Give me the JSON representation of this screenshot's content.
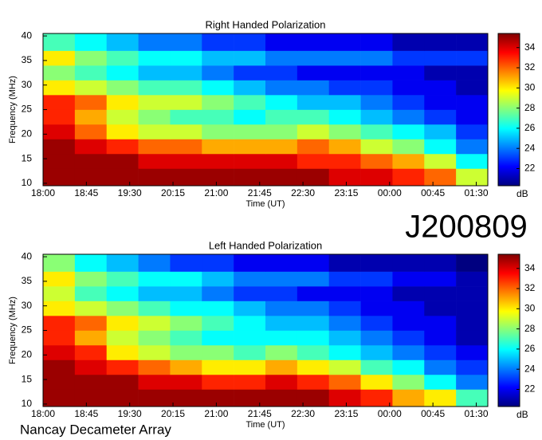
{
  "chart_data": [
    {
      "type": "heatmap",
      "title": "Right Handed Polarization",
      "x_label": "Time (UT)",
      "y_label": "Frequency (MHz)",
      "xlim": [
        18,
        25.7
      ],
      "xticks": [
        {
          "value": 18,
          "label": "18:00"
        },
        {
          "value": 18.75,
          "label": "18:45"
        },
        {
          "value": 19.5,
          "label": "19:30"
        },
        {
          "value": 20.25,
          "label": "20:15"
        },
        {
          "value": 21,
          "label": "21:00"
        },
        {
          "value": 21.75,
          "label": "21:45"
        },
        {
          "value": 22.5,
          "label": "22:30"
        },
        {
          "value": 23.25,
          "label": "23:15"
        },
        {
          "value": 24,
          "label": "00:00"
        },
        {
          "value": 24.75,
          "label": "00:45"
        },
        {
          "value": 25.5,
          "label": "01:30"
        }
      ],
      "ylim": [
        9.5,
        40.5
      ],
      "yticks": [
        10,
        15,
        20,
        25,
        30,
        35,
        40
      ],
      "x_bins": [
        18,
        18.55,
        19.1,
        19.65,
        20.2,
        20.75,
        21.3,
        21.85,
        22.4,
        22.95,
        23.5,
        24.05,
        24.6,
        25.15,
        25.7
      ],
      "y_bins": [
        9.5,
        13,
        16,
        19,
        22,
        25,
        28,
        31,
        34,
        37,
        40.5
      ],
      "z": [
        [
          35,
          35,
          35,
          35,
          35,
          35,
          35,
          35,
          35,
          34,
          34,
          33,
          32,
          29
        ],
        [
          35,
          35,
          35,
          34,
          34,
          34,
          34,
          34,
          33,
          33,
          32,
          31,
          29,
          26
        ],
        [
          35,
          34,
          33,
          32,
          32,
          31,
          31,
          31,
          32,
          31,
          29,
          28,
          26,
          24
        ],
        [
          34,
          32,
          30,
          29,
          29,
          28,
          28,
          28,
          29,
          28,
          27,
          26,
          25,
          23
        ],
        [
          33,
          31,
          29,
          28,
          27,
          27,
          26,
          27,
          27,
          26,
          25,
          24,
          23,
          22
        ],
        [
          33,
          32,
          30,
          29,
          29,
          28,
          27,
          26,
          25,
          25,
          24,
          23,
          22,
          22
        ],
        [
          30,
          29,
          28,
          27,
          27,
          26,
          25,
          24,
          24,
          23,
          23,
          22,
          22,
          21
        ],
        [
          28,
          27,
          26,
          25,
          25,
          24,
          23,
          23,
          22,
          22,
          22,
          22,
          21,
          21
        ],
        [
          30,
          28,
          27,
          26,
          26,
          25,
          25,
          24,
          24,
          24,
          24,
          23,
          23,
          23
        ],
        [
          27,
          26,
          25,
          24,
          24,
          23,
          23,
          22,
          22,
          22,
          22,
          21,
          21,
          21
        ]
      ],
      "colormap": "jet",
      "clim": [
        20.3,
        35.4
      ],
      "cticks": [
        22,
        24,
        26,
        28,
        30,
        32,
        34
      ],
      "colorbar_label": "dB"
    },
    {
      "type": "heatmap",
      "title": "Left Handed Polarization",
      "x_label": "Time (UT)",
      "y_label": "Frequency (MHz)",
      "xlim": [
        18,
        25.7
      ],
      "xticks": [
        {
          "value": 18,
          "label": "18:00"
        },
        {
          "value": 18.75,
          "label": "18:45"
        },
        {
          "value": 19.5,
          "label": "19:30"
        },
        {
          "value": 20.25,
          "label": "20:15"
        },
        {
          "value": 21,
          "label": "21:00"
        },
        {
          "value": 21.75,
          "label": "21:45"
        },
        {
          "value": 22.5,
          "label": "22:30"
        },
        {
          "value": 23.25,
          "label": "23:15"
        },
        {
          "value": 24,
          "label": "00:00"
        },
        {
          "value": 24.75,
          "label": "00:45"
        },
        {
          "value": 25.5,
          "label": "01:30"
        }
      ],
      "ylim": [
        9.5,
        40.5
      ],
      "yticks": [
        10,
        15,
        20,
        25,
        30,
        35,
        40
      ],
      "x_bins": [
        18,
        18.55,
        19.1,
        19.65,
        20.2,
        20.75,
        21.3,
        21.85,
        22.4,
        22.95,
        23.5,
        24.05,
        24.6,
        25.15,
        25.7
      ],
      "y_bins": [
        9.5,
        13,
        16,
        19,
        22,
        25,
        28,
        31,
        34,
        37,
        40.5
      ],
      "z": [
        [
          35,
          35,
          35,
          35,
          35,
          35,
          35,
          35,
          35,
          34,
          33,
          31,
          30,
          27
        ],
        [
          35,
          35,
          35,
          34,
          34,
          33,
          33,
          34,
          33,
          32,
          30,
          28,
          26,
          24
        ],
        [
          35,
          34,
          33,
          32,
          31,
          30,
          30,
          31,
          30,
          29,
          27,
          26,
          24,
          23
        ],
        [
          34,
          33,
          30,
          29,
          28,
          28,
          27,
          28,
          27,
          26,
          25,
          24,
          23,
          22
        ],
        [
          33,
          31,
          29,
          28,
          27,
          26,
          26,
          26,
          26,
          25,
          24,
          23,
          22,
          21
        ],
        [
          33,
          32,
          30,
          29,
          28,
          27,
          26,
          25,
          25,
          24,
          23,
          22,
          22,
          21
        ],
        [
          30,
          29,
          28,
          27,
          26,
          26,
          25,
          24,
          24,
          23,
          22,
          22,
          21,
          21
        ],
        [
          29,
          27,
          26,
          25,
          25,
          24,
          23,
          23,
          22,
          22,
          22,
          21,
          21,
          21
        ],
        [
          30,
          28,
          27,
          26,
          26,
          25,
          24,
          24,
          24,
          23,
          23,
          22,
          22,
          21
        ],
        [
          28,
          26,
          25,
          24,
          23,
          23,
          22,
          22,
          22,
          21,
          21,
          21,
          21,
          20
        ]
      ],
      "colormap": "jet",
      "clim": [
        20.3,
        35.4
      ],
      "cticks": [
        22,
        24,
        26,
        28,
        30,
        32,
        34
      ],
      "colorbar_label": "dB"
    }
  ],
  "event_id": "J200809",
  "footer": "Nancay Decameter Array"
}
